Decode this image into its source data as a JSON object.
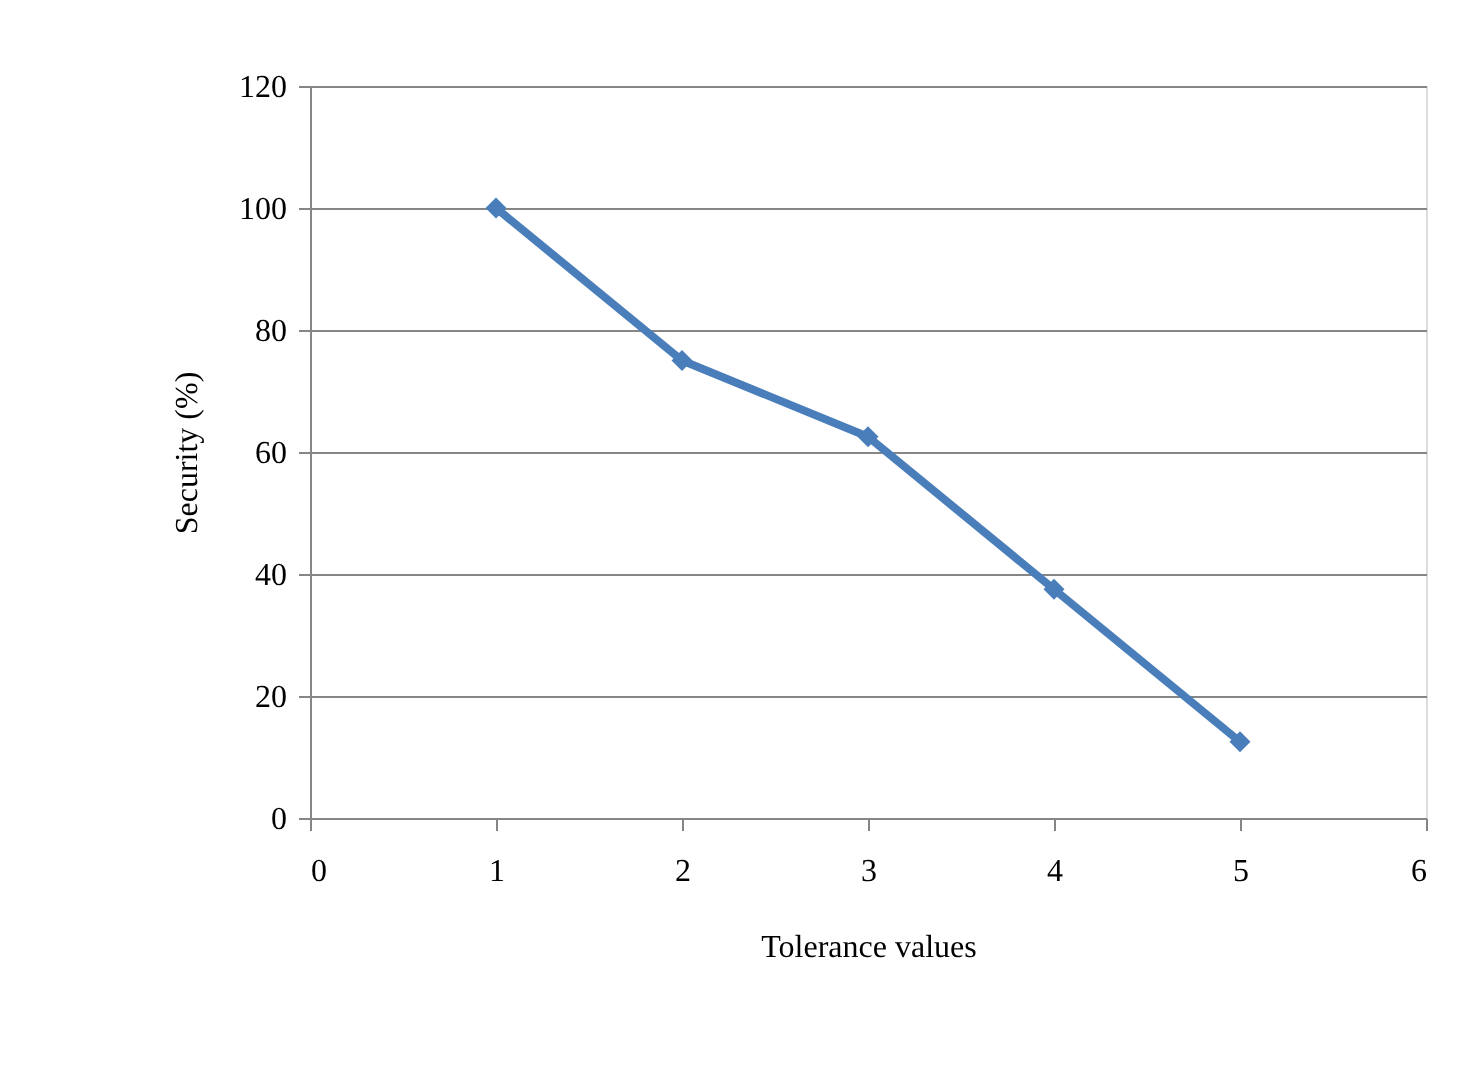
{
  "chart_data": {
    "type": "line",
    "xlabel": "Tolerance values",
    "ylabel": "Security (%)",
    "x": [
      1,
      2,
      3,
      4,
      5
    ],
    "series": [
      {
        "color": "#4a7ebb",
        "values": [
          100,
          75,
          62.5,
          37.5,
          12.5
        ]
      }
    ],
    "xlim": [
      0,
      6
    ],
    "xticks": [
      0,
      1,
      2,
      3,
      4,
      5,
      6
    ],
    "ylim": [
      0,
      120
    ],
    "yticks": [
      0,
      20,
      40,
      60,
      80,
      100,
      120
    ],
    "grid": "y",
    "marker": "diamond",
    "line_style": "solid"
  }
}
